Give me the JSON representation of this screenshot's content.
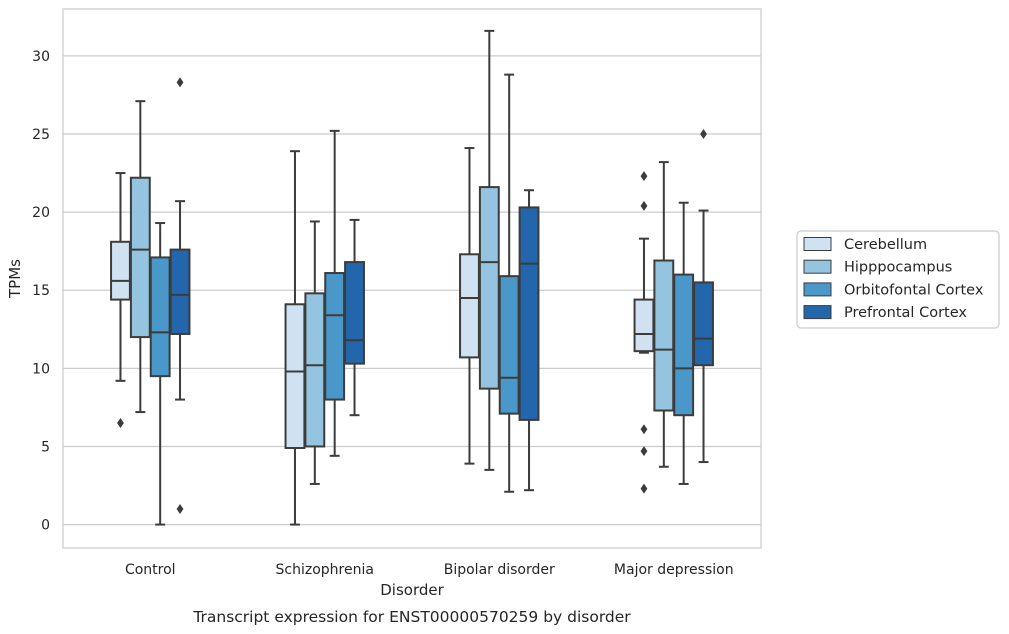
{
  "chart_data": {
    "type": "box",
    "caption": "Transcript expression for ENST00000570259 by disorder",
    "xlabel": "Disorder",
    "ylabel": "TPMs",
    "ylim": [
      -1.5,
      33
    ],
    "yticks": [
      0,
      5,
      10,
      15,
      20,
      25,
      30
    ],
    "grid": true,
    "legend_position": "right",
    "categories": [
      "Control",
      "Schizophrenia",
      "Bipolar disorder",
      "Major depression"
    ],
    "series": [
      {
        "name": "Cerebellum",
        "color": "#d0e1f2",
        "boxes": [
          {
            "whislo": 9.2,
            "q1": 14.4,
            "med": 15.6,
            "q3": 18.1,
            "whishi": 22.5,
            "fliers": [
              6.5
            ]
          },
          {
            "whislo": 0.0,
            "q1": 4.9,
            "med": 9.8,
            "q3": 14.1,
            "whishi": 23.9,
            "fliers": []
          },
          {
            "whislo": 3.9,
            "q1": 10.7,
            "med": 14.5,
            "q3": 17.3,
            "whishi": 24.1,
            "fliers": []
          },
          {
            "whislo": 11.0,
            "q1": 11.1,
            "med": 12.2,
            "q3": 14.4,
            "whishi": 18.3,
            "fliers": [
              22.3,
              20.4,
              6.1,
              4.7,
              2.3
            ]
          }
        ]
      },
      {
        "name": "Hipppocampus",
        "color": "#94c4df",
        "boxes": [
          {
            "whislo": 7.2,
            "q1": 12.0,
            "med": 17.6,
            "q3": 22.2,
            "whishi": 27.1,
            "fliers": []
          },
          {
            "whislo": 2.6,
            "q1": 5.0,
            "med": 10.2,
            "q3": 14.8,
            "whishi": 19.4,
            "fliers": []
          },
          {
            "whislo": 3.5,
            "q1": 8.7,
            "med": 16.8,
            "q3": 21.6,
            "whishi": 31.6,
            "fliers": []
          },
          {
            "whislo": 3.7,
            "q1": 7.3,
            "med": 11.2,
            "q3": 16.9,
            "whishi": 23.2,
            "fliers": []
          }
        ]
      },
      {
        "name": "Orbitofontal Cortex",
        "color": "#4a98c9",
        "boxes": [
          {
            "whislo": 0.0,
            "q1": 9.5,
            "med": 12.3,
            "q3": 17.1,
            "whishi": 19.3,
            "fliers": []
          },
          {
            "whislo": 4.4,
            "q1": 8.0,
            "med": 13.4,
            "q3": 16.1,
            "whishi": 25.2,
            "fliers": []
          },
          {
            "whislo": 2.1,
            "q1": 7.1,
            "med": 9.4,
            "q3": 15.9,
            "whishi": 28.8,
            "fliers": []
          },
          {
            "whislo": 2.6,
            "q1": 7.0,
            "med": 10.0,
            "q3": 16.0,
            "whishi": 20.6,
            "fliers": []
          }
        ]
      },
      {
        "name": "Prefrontal Cortex",
        "color": "#2366ab",
        "boxes": [
          {
            "whislo": 8.0,
            "q1": 12.2,
            "med": 14.7,
            "q3": 17.6,
            "whishi": 20.7,
            "fliers": [
              28.3,
              1.0
            ]
          },
          {
            "whislo": 7.0,
            "q1": 10.3,
            "med": 11.8,
            "q3": 16.8,
            "whishi": 19.5,
            "fliers": []
          },
          {
            "whislo": 2.2,
            "q1": 6.7,
            "med": 16.7,
            "q3": 20.3,
            "whishi": 21.4,
            "fliers": []
          },
          {
            "whislo": 4.0,
            "q1": 10.2,
            "med": 11.9,
            "q3": 15.5,
            "whishi": 20.1,
            "fliers": [
              25.0
            ]
          }
        ]
      }
    ]
  }
}
